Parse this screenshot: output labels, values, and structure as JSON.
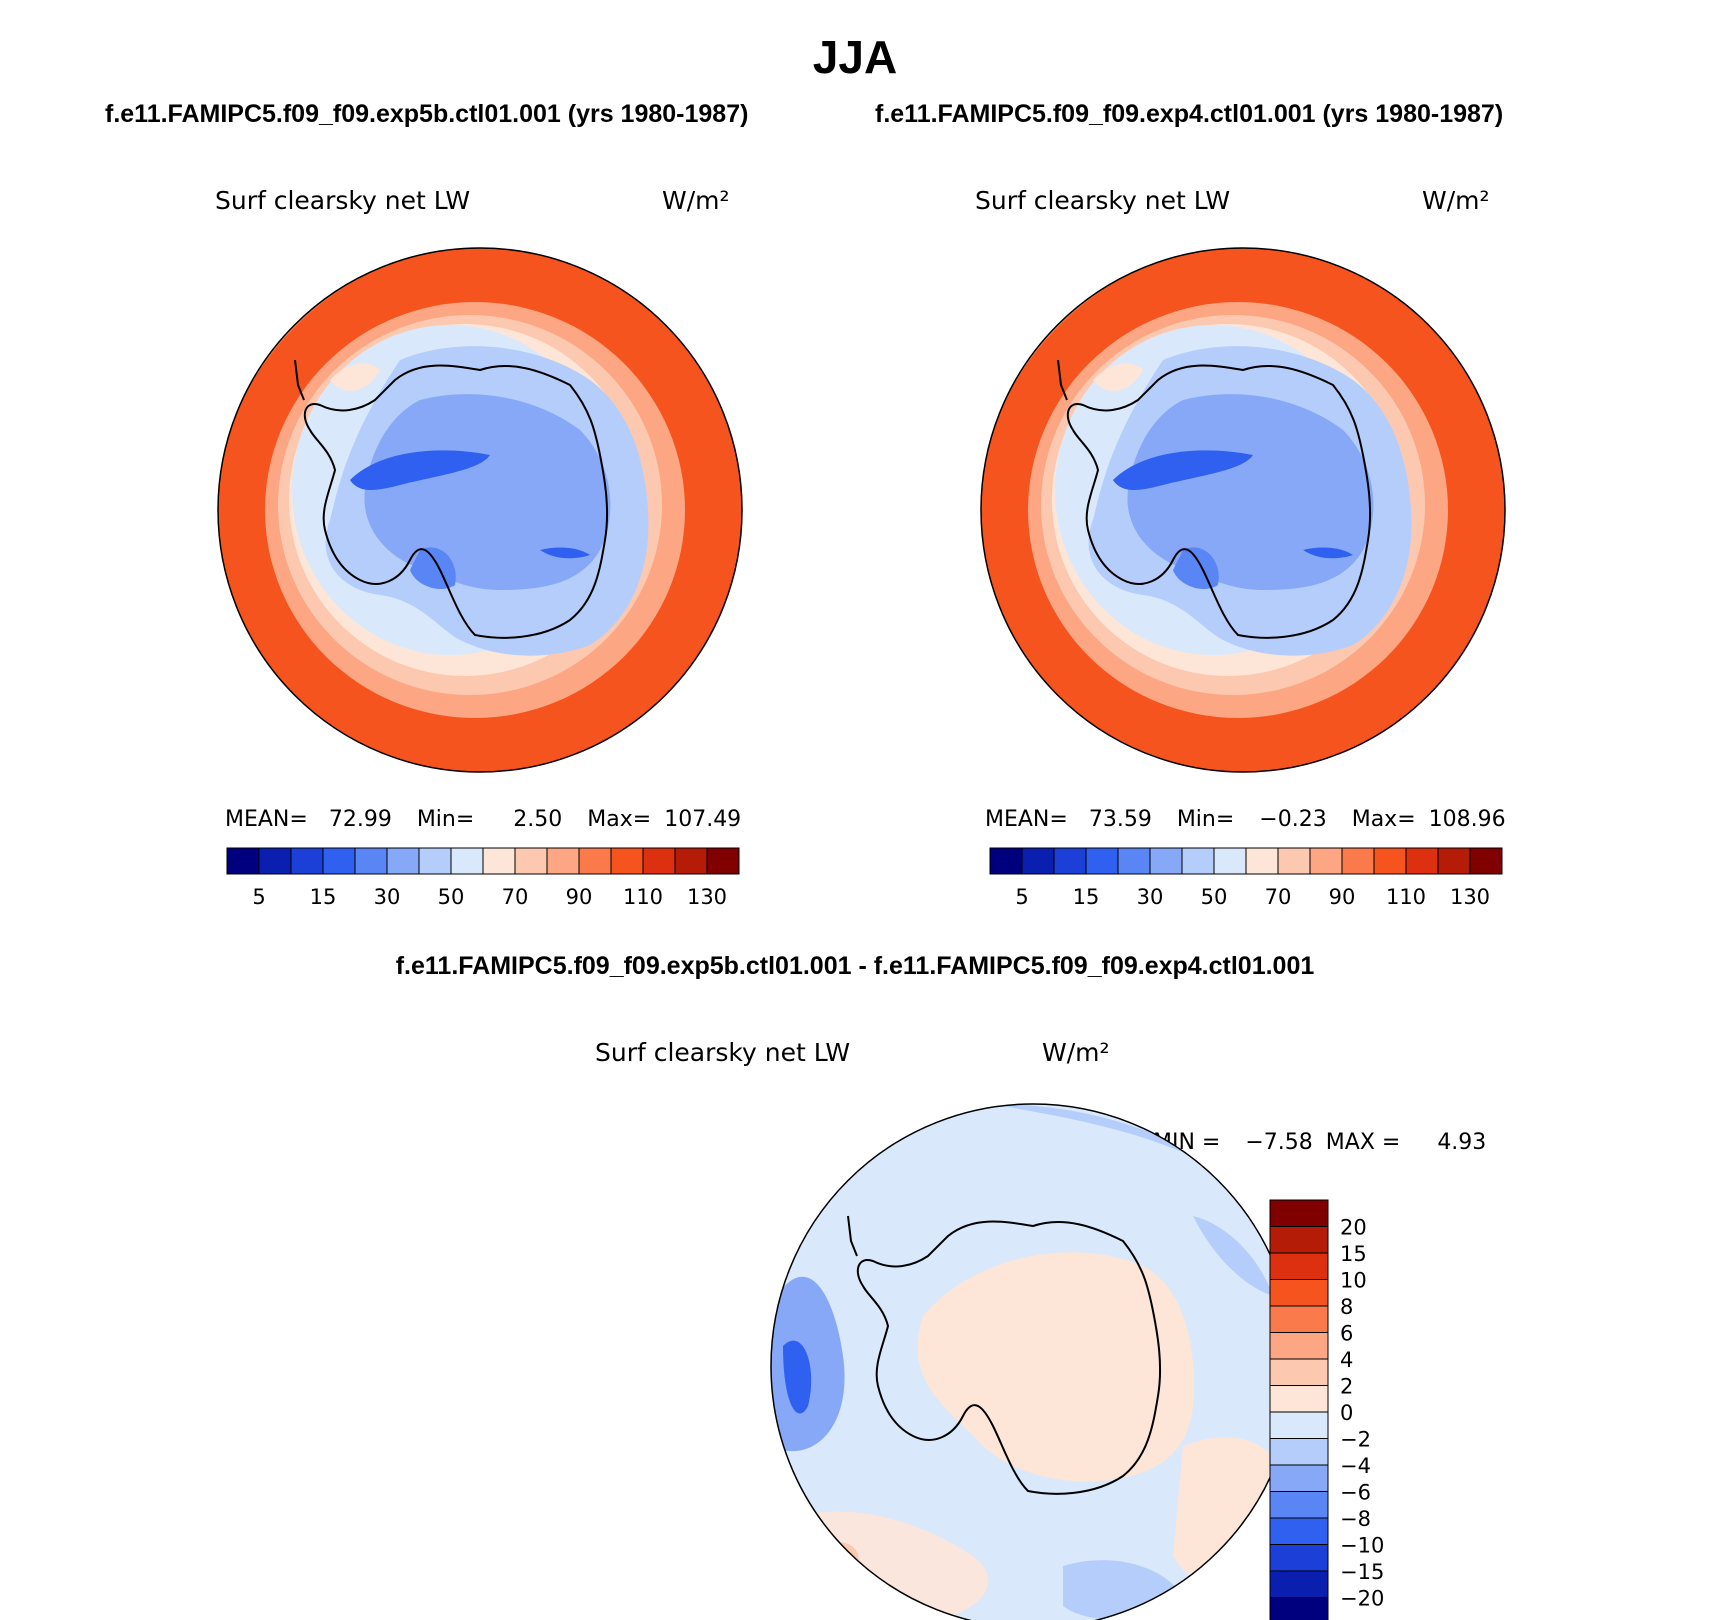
{
  "figure": {
    "title": "JJA",
    "case_a_title": "f.e11.FAMIPC5.f09_f09.exp5b.ctl01.001 (yrs 1980-1987)",
    "case_b_title": "f.e11.FAMIPC5.f09_f09.exp4.ctl01.001 (yrs 1980-1987)",
    "diff_title": "f.e11.FAMIPC5.f09_f09.exp5b.ctl01.001 - f.e11.FAMIPC5.f09_f09.exp4.ctl01.001"
  },
  "chart_data": [
    {
      "type": "heatmap",
      "title": "Surf clearsky net LW",
      "units": "W/m²",
      "projection": "south polar stereographic",
      "stats": {
        "mean_label": "MEAN=",
        "mean": "72.99",
        "min_label": "Min=",
        "min": "2.50",
        "max_label": "Max=",
        "max": "107.49"
      },
      "colorbar_levels": [
        "5",
        "15",
        "30",
        "50",
        "70",
        "90",
        "110",
        "130"
      ],
      "colors": [
        "#00007f",
        "#0a1fb0",
        "#1c3fd8",
        "#3060f0",
        "#5a86f5",
        "#86a8f7",
        "#b5cdfa",
        "#d9e8fb",
        "#fde6d8",
        "#fcc9b0",
        "#fca684",
        "#fb7a4c",
        "#f6541f",
        "#dc3010",
        "#b41c08",
        "#800000"
      ]
    },
    {
      "type": "heatmap",
      "title": "Surf clearsky net LW",
      "units": "W/m²",
      "projection": "south polar stereographic",
      "stats": {
        "mean_label": "MEAN=",
        "mean": "73.59",
        "min_label": "Min=",
        "min": "−0.23",
        "max_label": "Max=",
        "max": "108.96"
      },
      "colorbar_levels": [
        "5",
        "15",
        "30",
        "50",
        "70",
        "90",
        "110",
        "130"
      ],
      "colors": [
        "#00007f",
        "#0a1fb0",
        "#1c3fd8",
        "#3060f0",
        "#5a86f5",
        "#86a8f7",
        "#b5cdfa",
        "#d9e8fb",
        "#fde6d8",
        "#fcc9b0",
        "#fca684",
        "#fb7a4c",
        "#f6541f",
        "#dc3010",
        "#b41c08",
        "#800000"
      ]
    },
    {
      "type": "heatmap",
      "title": "Surf clearsky net LW",
      "units": "W/m²",
      "projection": "south polar stereographic",
      "stats": {
        "min_label": "MIN =",
        "min": "−7.58",
        "max_label": "MAX =",
        "max": "4.93"
      },
      "colorbar_levels": [
        "20",
        "15",
        "10",
        "8",
        "6",
        "4",
        "2",
        "0",
        "−2",
        "−4",
        "−6",
        "−8",
        "−10",
        "−15",
        "−20"
      ],
      "colors": [
        "#800000",
        "#b41c08",
        "#dc3010",
        "#f6541f",
        "#fb7a4c",
        "#fca684",
        "#fcc9b0",
        "#fde6d8",
        "#d9e8fb",
        "#b5cdfa",
        "#86a8f7",
        "#5a86f5",
        "#3060f0",
        "#1c3fd8",
        "#0a1fb0",
        "#00007f"
      ]
    }
  ]
}
